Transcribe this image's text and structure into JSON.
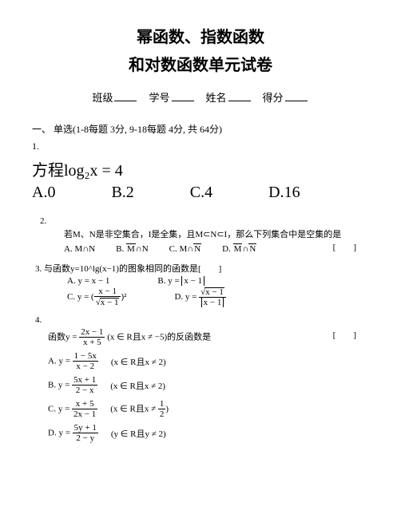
{
  "title_line1": "幂函数、指数函数",
  "title_line2": "和对数函数单元试卷",
  "info": {
    "class_label": "班级",
    "id_label": "学号",
    "name_label": "姓名",
    "score_label": "得分"
  },
  "section1": "一、 单选(1-8每题 3分, 9-18每题 4分, 共 64分)",
  "q1_num": "1.",
  "q1_text": "方程log₂x = 4",
  "q1_opts": {
    "a": "A.0",
    "b": "B.2",
    "c": "C.4",
    "d": "D.16"
  },
  "q2_num": "2.",
  "q2_text_pre": "若M、N是非空集合，I是全集，且M⊂N⊂I，那么下列集合中是空集的是",
  "bracket": "[　　]",
  "q2_opts": {
    "a_pre": "A.  M∩N",
    "b_pre": "B.  ",
    "b_over": "M",
    "b_post": "∩N",
    "c_pre": "C.  M∩",
    "c_over": "N",
    "d_pre": "D.  ",
    "d_over1": "M",
    "d_mid": "∩",
    "d_over2": "N"
  },
  "q3_num": "3.",
  "q3_text": "与函数y=10^lg(x−1)的图象相同的函数是[　　]",
  "q3_opts": {
    "a": "A.  y = x − 1",
    "b_pre": "B.  y = ",
    "b_abs": "x − 1",
    "c_pre": "C.  y = (",
    "c_num": "x − 1",
    "c_den_rad": "x − 1",
    "c_post": ")²",
    "d_pre": "D.  y = ",
    "d_num_rad": "x − 1",
    "d_den_abs": "x − 1"
  },
  "q4_num": "4.",
  "q4_text_pre": "函数y = ",
  "q4_main_num": "2x − 1",
  "q4_main_den": "x + 5",
  "q4_text_post": " (x ∈ R且x ≠ −5)的反函数是",
  "q4_opts": {
    "a_pre": "A.  y = ",
    "a_num": "1 − 5x",
    "a_den": "x − 2",
    "a_cond": "(x ∈ R且x ≠ 2)",
    "b_pre": "B.  y = ",
    "b_num": "5x + 1",
    "b_den": "2 − x",
    "b_cond": "(x ∈ R且x ≠ 2)",
    "c_pre": "C.  y = ",
    "c_num": "x + 5",
    "c_den": "2x − 1",
    "c_cond_pre": "(x ∈ R且x ≠ ",
    "c_cond_num": "1",
    "c_cond_den": "2",
    "c_cond_post": ")",
    "d_pre": "D.  y = ",
    "d_num": "5y + 1",
    "d_den": "2 − y",
    "d_cond": "(y ∈ R且y ≠ 2)"
  }
}
